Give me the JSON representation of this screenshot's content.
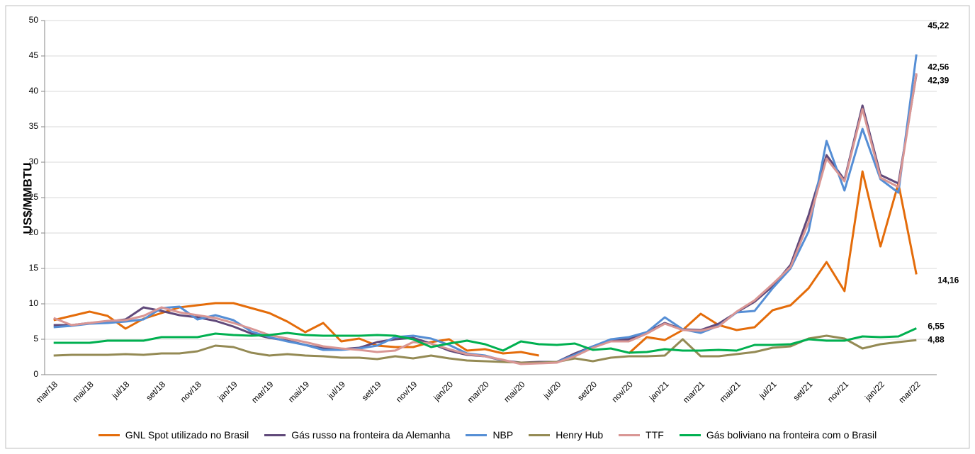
{
  "chart_data": {
    "type": "line",
    "y_label": "US$/MMBTU",
    "categories": [
      "mar/18",
      null,
      "mai/18",
      null,
      "jul/18",
      null,
      "set/18",
      null,
      "nov/18",
      null,
      "jan/19",
      null,
      "mar/19",
      null,
      "mai/19",
      null,
      "jul/19",
      null,
      "set/19",
      null,
      "nov/19",
      null,
      "jan/20",
      null,
      "mar/20",
      null,
      "mai/20",
      null,
      "jul/20",
      null,
      "set/20",
      null,
      "nov/20",
      null,
      "jan/21",
      null,
      "mar/21",
      null,
      "mai/21",
      null,
      "jul/21",
      null,
      "set/21",
      null,
      "nov/21",
      null,
      "jan/22",
      null,
      "mar/22"
    ],
    "ylim": [
      0,
      50
    ],
    "yticks": [
      0,
      5,
      10,
      15,
      20,
      25,
      30,
      35,
      40,
      45,
      50
    ],
    "legend": "bottom",
    "series": [
      {
        "name": "GNL Spot utilizado no Brasil",
        "color": "#e46c0a",
        "label_color": "#f79646",
        "values": [
          7.7,
          8.3,
          8.9,
          8.3,
          6.5,
          7.9,
          8.7,
          9.5,
          9.8,
          10.1,
          10.1,
          9.4,
          8.7,
          7.5,
          6.0,
          7.3,
          4.7,
          5.1,
          4.1,
          3.9,
          3.9,
          4.6,
          5.0,
          3.4,
          3.6,
          3.0,
          3.2,
          2.7,
          null,
          null,
          null,
          null,
          3.0,
          5.3,
          4.9,
          6.3,
          8.6,
          7.0,
          6.3,
          6.7,
          9.1,
          9.8,
          12.2,
          15.9,
          11.8,
          28.7,
          18.1,
          27.0,
          14.16
        ],
        "value_labels": [
          null,
          null,
          null,
          null,
          null,
          null,
          null,
          null,
          null,
          null,
          null,
          null,
          null,
          null,
          null,
          null,
          null,
          null,
          null,
          null,
          null,
          null,
          null,
          null,
          null,
          null,
          null,
          null,
          null,
          null,
          null,
          null,
          null,
          null,
          null,
          null,
          null,
          null,
          null,
          null,
          null,
          null,
          null,
          null,
          null,
          null,
          null,
          null,
          "14,16"
        ]
      },
      {
        "name": "Gás russo na fronteira da Alemanha",
        "color": "#60497a",
        "label_color": "#604a7b",
        "values": [
          7.0,
          7.0,
          7.3,
          7.5,
          7.8,
          9.5,
          9.0,
          8.4,
          8.1,
          7.6,
          6.8,
          5.8,
          5.2,
          4.8,
          4.2,
          3.7,
          3.6,
          3.8,
          4.6,
          5.0,
          5.2,
          4.4,
          3.4,
          2.8,
          2.6,
          2.0,
          1.7,
          1.8,
          1.8,
          3.0,
          4.0,
          4.8,
          5.0,
          6.0,
          7.3,
          6.4,
          6.3,
          7.2,
          8.8,
          10.3,
          12.5,
          15.5,
          22.5,
          31.0,
          27.5,
          38.0,
          28.2,
          27.0,
          42.39
        ],
        "value_labels": [
          null,
          null,
          null,
          null,
          null,
          null,
          null,
          null,
          null,
          null,
          null,
          null,
          null,
          null,
          null,
          null,
          null,
          null,
          null,
          null,
          null,
          null,
          null,
          null,
          null,
          null,
          null,
          null,
          null,
          null,
          null,
          null,
          null,
          null,
          null,
          null,
          null,
          null,
          null,
          null,
          null,
          null,
          null,
          null,
          null,
          null,
          null,
          null,
          "42,39"
        ]
      },
      {
        "name": "NBP",
        "color": "#558ed5",
        "label_color": "#558ed5",
        "values": [
          6.7,
          6.9,
          7.2,
          7.3,
          7.5,
          7.8,
          9.4,
          9.6,
          7.8,
          8.4,
          7.7,
          6.1,
          5.3,
          4.7,
          4.2,
          3.5,
          3.5,
          3.7,
          4.1,
          5.3,
          5.5,
          5.1,
          4.2,
          3.0,
          2.7,
          2.0,
          1.6,
          1.7,
          1.8,
          2.8,
          4.0,
          5.0,
          5.3,
          6.0,
          8.1,
          6.4,
          5.9,
          6.9,
          8.8,
          9.0,
          12.2,
          15.0,
          20.2,
          33.0,
          26.0,
          34.7,
          27.6,
          25.7,
          45.22
        ],
        "value_labels": [
          null,
          null,
          null,
          null,
          null,
          null,
          null,
          null,
          null,
          null,
          null,
          null,
          null,
          null,
          null,
          null,
          null,
          null,
          null,
          null,
          null,
          null,
          null,
          null,
          null,
          null,
          null,
          null,
          null,
          null,
          null,
          null,
          null,
          null,
          null,
          null,
          null,
          null,
          null,
          null,
          null,
          null,
          null,
          null,
          null,
          null,
          null,
          null,
          "45,22"
        ]
      },
      {
        "name": "Henry Hub",
        "color": "#948a54",
        "label_color": "#948a54",
        "values": [
          2.7,
          2.8,
          2.8,
          2.8,
          2.9,
          2.8,
          3.0,
          3.0,
          3.3,
          4.1,
          3.9,
          3.1,
          2.7,
          2.9,
          2.7,
          2.6,
          2.4,
          2.4,
          2.2,
          2.6,
          2.3,
          2.7,
          2.3,
          2.0,
          1.9,
          1.8,
          1.7,
          1.7,
          1.8,
          2.3,
          1.9,
          2.4,
          2.6,
          2.6,
          2.7,
          5.0,
          2.6,
          2.6,
          2.9,
          3.2,
          3.8,
          4.0,
          5.1,
          5.5,
          5.1,
          3.7,
          4.3,
          4.6,
          4.88
        ],
        "value_labels": [
          null,
          null,
          null,
          null,
          null,
          null,
          null,
          null,
          null,
          null,
          null,
          null,
          null,
          null,
          null,
          null,
          null,
          null,
          null,
          null,
          null,
          null,
          null,
          null,
          null,
          null,
          null,
          null,
          null,
          null,
          null,
          null,
          null,
          null,
          null,
          null,
          null,
          null,
          null,
          null,
          null,
          null,
          null,
          null,
          null,
          null,
          null,
          null,
          "4,88"
        ]
      },
      {
        "name": "TTF",
        "color": "#d99694",
        "label_color": "#c0504d",
        "values": [
          8.0,
          7.0,
          7.3,
          7.6,
          7.7,
          8.3,
          9.5,
          8.8,
          8.4,
          8.0,
          7.3,
          6.5,
          5.6,
          5.1,
          4.6,
          4.0,
          3.7,
          3.5,
          3.2,
          3.4,
          4.6,
          4.4,
          3.6,
          2.9,
          2.6,
          2.1,
          1.5,
          1.6,
          1.7,
          2.6,
          3.8,
          4.7,
          4.7,
          5.8,
          7.2,
          6.3,
          6.2,
          6.8,
          8.9,
          10.5,
          12.8,
          15.2,
          21.5,
          30.5,
          27.3,
          37.5,
          27.8,
          26.5,
          42.56
        ],
        "value_labels": [
          null,
          null,
          null,
          null,
          null,
          null,
          null,
          null,
          null,
          null,
          null,
          null,
          null,
          null,
          null,
          null,
          null,
          null,
          null,
          null,
          null,
          null,
          null,
          null,
          null,
          null,
          null,
          null,
          null,
          null,
          null,
          null,
          null,
          null,
          null,
          null,
          null,
          null,
          null,
          null,
          null,
          null,
          null,
          null,
          null,
          null,
          null,
          null,
          "42,56"
        ]
      },
      {
        "name": "Gás boliviano na fronteira com o Brasil",
        "color": "#00b050",
        "label_color": "#00b050",
        "values": [
          4.5,
          4.5,
          4.5,
          4.8,
          4.8,
          4.8,
          5.3,
          5.3,
          5.3,
          5.8,
          5.6,
          5.5,
          5.6,
          5.9,
          5.6,
          5.5,
          5.5,
          5.5,
          5.6,
          5.5,
          5.0,
          3.9,
          4.4,
          4.8,
          4.3,
          3.4,
          4.7,
          4.3,
          4.2,
          4.4,
          3.5,
          3.7,
          3.1,
          3.2,
          3.6,
          3.4,
          3.4,
          3.5,
          3.4,
          4.2,
          4.2,
          4.3,
          5.0,
          4.8,
          4.8,
          5.4,
          5.3,
          5.4,
          6.55
        ],
        "value_labels": [
          null,
          null,
          null,
          null,
          null,
          null,
          null,
          null,
          null,
          null,
          null,
          null,
          null,
          null,
          null,
          null,
          null,
          null,
          null,
          null,
          null,
          null,
          null,
          null,
          null,
          null,
          null,
          null,
          null,
          null,
          null,
          null,
          null,
          null,
          null,
          null,
          null,
          null,
          null,
          null,
          null,
          null,
          null,
          null,
          null,
          null,
          null,
          null,
          "6,55"
        ]
      }
    ]
  }
}
